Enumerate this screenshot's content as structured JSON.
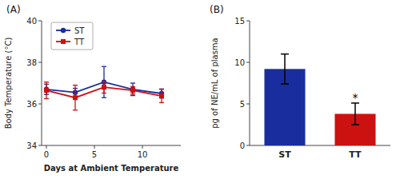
{
  "chart_data": [
    {
      "type": "line",
      "title": "(A)",
      "xlabel": "Days at Ambient Temperature",
      "ylabel": "Body Temperature (°C)",
      "x": [
        0,
        3,
        6,
        9,
        12
      ],
      "series": [
        {
          "name": "ST",
          "color": "#1a2d9e",
          "marker": "circle",
          "values": [
            36.7,
            36.55,
            37.05,
            36.7,
            36.5
          ],
          "errors": [
            0.25,
            0.2,
            0.75,
            0.3,
            0.22
          ]
        },
        {
          "name": "TT",
          "color": "#cc1111",
          "marker": "square",
          "values": [
            36.65,
            36.3,
            36.8,
            36.65,
            36.38
          ],
          "errors": [
            0.4,
            0.6,
            0.28,
            0.18,
            0.32
          ]
        }
      ],
      "xlim": [
        -0.5,
        14
      ],
      "ylim": [
        34,
        40
      ],
      "xticks": [
        0,
        5,
        10
      ],
      "yticks": [
        34,
        36,
        38,
        40
      ],
      "legend": "upper left"
    },
    {
      "type": "bar",
      "title": "(B)",
      "ylabel": "pg of NE/mL of plasma",
      "categories": [
        "ST",
        "TT"
      ],
      "values": [
        9.2,
        3.8
      ],
      "errors": [
        1.8,
        1.3
      ],
      "colors": [
        "#1a2d9e",
        "#cc1111"
      ],
      "ylim": [
        0,
        15
      ],
      "yticks": [
        0,
        5,
        10,
        15
      ],
      "annotations": [
        {
          "text": "*",
          "x": 1,
          "y": 5.3
        }
      ]
    }
  ]
}
